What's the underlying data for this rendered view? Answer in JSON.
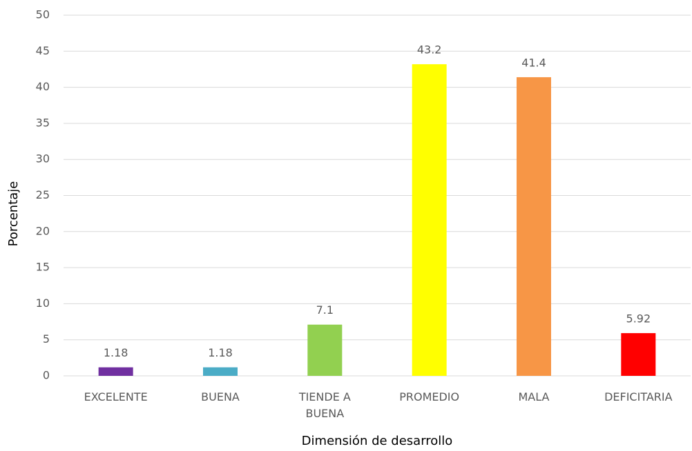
{
  "chart_data": {
    "type": "bar",
    "x_label": "Dimensión de desarrollo",
    "y_label": "Porcentaje",
    "categories": [
      "EXCELENTE",
      "BUENA",
      "TIENDE A BUENA",
      "PROMEDIO",
      "MALA",
      "DEFICITARIA"
    ],
    "values": [
      1.18,
      1.18,
      7.1,
      43.2,
      41.4,
      5.92
    ],
    "colors": [
      "#7030a0",
      "#4bacc6",
      "#92d050",
      "#ffff00",
      "#f79646",
      "#ff0000"
    ],
    "ylim": [
      0,
      50
    ],
    "yticks": [
      0,
      5,
      10,
      15,
      20,
      25,
      30,
      35,
      40,
      45,
      50
    ],
    "grid": true
  }
}
